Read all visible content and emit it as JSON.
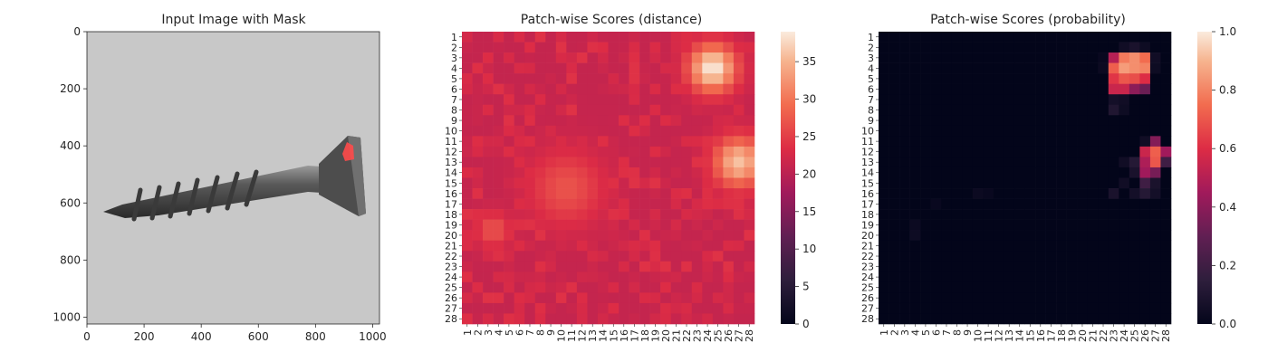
{
  "panels": [
    {
      "title": "Input Image with Mask"
    },
    {
      "title": "Patch-wise Scores (distance)"
    },
    {
      "title": "Patch-wise Scores (probability)"
    }
  ],
  "chart_data": [
    {
      "type": "image",
      "title": "Input Image with Mask",
      "xlabel": "",
      "ylabel": "",
      "xlim": [
        0,
        1024
      ],
      "ylim": [
        1024,
        0
      ],
      "x_ticks": [
        0,
        200,
        400,
        600,
        800,
        1000
      ],
      "y_ticks": [
        0,
        200,
        400,
        600,
        800,
        1000
      ],
      "mask_color": "#ff4a4a",
      "mask_region_px": {
        "x": [
          890,
          930
        ],
        "y": [
          375,
          420
        ]
      }
    },
    {
      "type": "heatmap",
      "title": "Patch-wise Scores (distance)",
      "rows": 28,
      "cols": 28,
      "row_labels": [
        "1",
        "2",
        "3",
        "4",
        "5",
        "6",
        "7",
        "8",
        "9",
        "10",
        "11",
        "12",
        "13",
        "14",
        "15",
        "16",
        "17",
        "18",
        "19",
        "20",
        "21",
        "22",
        "23",
        "24",
        "25",
        "26",
        "27",
        "28"
      ],
      "col_labels": [
        "1",
        "2",
        "3",
        "4",
        "5",
        "6",
        "7",
        "8",
        "9",
        "10",
        "11",
        "12",
        "13",
        "14",
        "15",
        "16",
        "17",
        "18",
        "19",
        "20",
        "21",
        "22",
        "23",
        "24",
        "25",
        "26",
        "27",
        "28"
      ],
      "colorbar": {
        "min": 0,
        "max": 39,
        "ticks": [
          0,
          5,
          10,
          15,
          20,
          25,
          30,
          35
        ]
      },
      "base_value": 21,
      "hotspots": [
        {
          "row": 4,
          "col": 24.5,
          "peak": 39,
          "spread": 1.6
        },
        {
          "row": 13,
          "col": 27,
          "peak": 36,
          "spread": 1.7
        },
        {
          "row": 15.5,
          "col": 10.5,
          "peak": 27,
          "spread": 2.5
        },
        {
          "row": 19.5,
          "col": 3.5,
          "peak": 27,
          "spread": 1.2
        }
      ]
    },
    {
      "type": "heatmap",
      "title": "Patch-wise Scores (probability)",
      "rows": 28,
      "cols": 28,
      "row_labels": [
        "1",
        "2",
        "3",
        "4",
        "5",
        "6",
        "7",
        "8",
        "9",
        "10",
        "11",
        "12",
        "13",
        "14",
        "15",
        "16",
        "17",
        "18",
        "19",
        "20",
        "21",
        "22",
        "23",
        "24",
        "25",
        "26",
        "27",
        "28"
      ],
      "col_labels": [
        "1",
        "2",
        "3",
        "4",
        "5",
        "6",
        "7",
        "8",
        "9",
        "10",
        "11",
        "12",
        "13",
        "14",
        "15",
        "16",
        "17",
        "18",
        "19",
        "20",
        "21",
        "22",
        "23",
        "24",
        "25",
        "26",
        "27",
        "28"
      ],
      "colorbar": {
        "min": 0.0,
        "max": 1.0,
        "ticks": [
          0.0,
          0.2,
          0.4,
          0.6,
          0.8,
          1.0
        ]
      },
      "nonzero_cells": [
        {
          "row": 2,
          "col": 24,
          "value": 0.05
        },
        {
          "row": 2,
          "col": 25,
          "value": 0.08
        },
        {
          "row": 2,
          "col": 26,
          "value": 0.04
        },
        {
          "row": 3,
          "col": 22,
          "value": 0.02
        },
        {
          "row": 3,
          "col": 23,
          "value": 0.5
        },
        {
          "row": 3,
          "col": 24,
          "value": 0.78
        },
        {
          "row": 3,
          "col": 25,
          "value": 0.82
        },
        {
          "row": 3,
          "col": 26,
          "value": 0.75
        },
        {
          "row": 3,
          "col": 27,
          "value": 0.05
        },
        {
          "row": 4,
          "col": 22,
          "value": 0.03
        },
        {
          "row": 4,
          "col": 23,
          "value": 0.72
        },
        {
          "row": 4,
          "col": 24,
          "value": 0.85
        },
        {
          "row": 4,
          "col": 25,
          "value": 0.82
        },
        {
          "row": 4,
          "col": 26,
          "value": 0.8
        },
        {
          "row": 4,
          "col": 27,
          "value": 0.04
        },
        {
          "row": 5,
          "col": 23,
          "value": 0.62
        },
        {
          "row": 5,
          "col": 24,
          "value": 0.7
        },
        {
          "row": 5,
          "col": 25,
          "value": 0.68
        },
        {
          "row": 5,
          "col": 26,
          "value": 0.6
        },
        {
          "row": 6,
          "col": 23,
          "value": 0.55
        },
        {
          "row": 6,
          "col": 24,
          "value": 0.55
        },
        {
          "row": 6,
          "col": 25,
          "value": 0.4
        },
        {
          "row": 6,
          "col": 26,
          "value": 0.32
        },
        {
          "row": 7,
          "col": 23,
          "value": 0.06
        },
        {
          "row": 7,
          "col": 24,
          "value": 0.05
        },
        {
          "row": 8,
          "col": 23,
          "value": 0.1
        },
        {
          "row": 8,
          "col": 24,
          "value": 0.04
        },
        {
          "row": 11,
          "col": 27,
          "value": 0.38
        },
        {
          "row": 11,
          "col": 26,
          "value": 0.05
        },
        {
          "row": 12,
          "col": 26,
          "value": 0.55
        },
        {
          "row": 12,
          "col": 27,
          "value": 0.72
        },
        {
          "row": 12,
          "col": 28,
          "value": 0.45
        },
        {
          "row": 13,
          "col": 24,
          "value": 0.05
        },
        {
          "row": 13,
          "col": 25,
          "value": 0.12
        },
        {
          "row": 13,
          "col": 26,
          "value": 0.48
        },
        {
          "row": 13,
          "col": 27,
          "value": 0.7
        },
        {
          "row": 13,
          "col": 28,
          "value": 0.2
        },
        {
          "row": 14,
          "col": 25,
          "value": 0.08
        },
        {
          "row": 14,
          "col": 26,
          "value": 0.45
        },
        {
          "row": 14,
          "col": 27,
          "value": 0.35
        },
        {
          "row": 15,
          "col": 24,
          "value": 0.05
        },
        {
          "row": 15,
          "col": 26,
          "value": 0.2
        },
        {
          "row": 15,
          "col": 27,
          "value": 0.08
        },
        {
          "row": 16,
          "col": 23,
          "value": 0.08
        },
        {
          "row": 16,
          "col": 25,
          "value": 0.06
        },
        {
          "row": 16,
          "col": 26,
          "value": 0.12
        },
        {
          "row": 16,
          "col": 27,
          "value": 0.06
        },
        {
          "row": 16,
          "col": 10,
          "value": 0.03
        },
        {
          "row": 16,
          "col": 11,
          "value": 0.02
        },
        {
          "row": 17,
          "col": 6,
          "value": 0.02
        },
        {
          "row": 19,
          "col": 4,
          "value": 0.03
        },
        {
          "row": 20,
          "col": 4,
          "value": 0.04
        }
      ]
    }
  ]
}
